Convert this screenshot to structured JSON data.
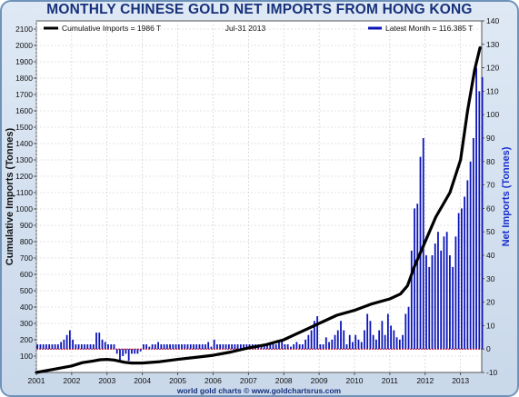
{
  "title": "MONTHLY CHINESE GOLD NET IMPORTS FROM HONG KONG",
  "footer": "world gold charts © www.goldchartsrus.com",
  "colors": {
    "title": "#16307a",
    "bars": "#0b14b8",
    "line": "#000000",
    "frame": "#6f93b8",
    "zero_line": "#b0002a",
    "left_axis_label": "#111111",
    "right_axis_label": "#1a2fd0"
  },
  "chart_data": {
    "type": "bar+line",
    "left_axis": {
      "label": "Cumulative Imports (Tonnes)",
      "min": 0,
      "max": 2150,
      "ticks": [
        100,
        200,
        300,
        400,
        500,
        600,
        700,
        800,
        900,
        1000,
        1100,
        1200,
        1300,
        1400,
        1500,
        1600,
        1700,
        1800,
        1900,
        2000,
        2100
      ]
    },
    "right_axis": {
      "label": "Net Imports (Tonnes)",
      "min": -10,
      "max": 140,
      "ticks": [
        -10,
        0,
        10,
        20,
        30,
        40,
        50,
        60,
        70,
        80,
        90,
        100,
        110,
        120,
        130,
        140
      ]
    },
    "x_axis": {
      "ticks": [
        "2001",
        "2002",
        "2003",
        "2004",
        "2005",
        "2006",
        "2007",
        "2008",
        "2009",
        "2010",
        "2011",
        "2012",
        "2013"
      ],
      "start": 2001.0,
      "end": 2013.6
    },
    "legend": {
      "left": "Cumulative Imports = 1986 T",
      "center": "Jul-31 2013",
      "right": "Latest Month = 116.385 T"
    },
    "series": [
      {
        "name": "Latest Month",
        "type": "bar",
        "axis": "right",
        "start": "2001-01",
        "monthly_values": [
          2,
          2,
          2,
          2,
          2,
          2,
          2,
          2,
          3,
          4,
          6,
          8,
          4,
          2,
          2,
          2,
          2,
          2,
          2,
          2,
          7,
          7,
          4,
          3,
          2,
          2,
          2,
          -2,
          -5,
          -3,
          -2,
          -5,
          -2,
          -2,
          -2,
          -1,
          2,
          2,
          1,
          2,
          2,
          3,
          2,
          2,
          2,
          2,
          2,
          2,
          2,
          2,
          2,
          2,
          2,
          2,
          2,
          2,
          2,
          2,
          3,
          1,
          4,
          2,
          2,
          2,
          2,
          2,
          2,
          2,
          2,
          2,
          2,
          2,
          2,
          2,
          2,
          2,
          2,
          2,
          2,
          2,
          2,
          2,
          3,
          4,
          2,
          2,
          1,
          2,
          3,
          2,
          2,
          4,
          6,
          8,
          12,
          14,
          2,
          2,
          5,
          3,
          4,
          6,
          8,
          12,
          8,
          2,
          6,
          3,
          6,
          4,
          3,
          8,
          15,
          12,
          6,
          4,
          8,
          12,
          6,
          15,
          10,
          8,
          5,
          4,
          6,
          15,
          18,
          42,
          60,
          62,
          82,
          90,
          40,
          35,
          40,
          45,
          50,
          42,
          48,
          50,
          40,
          35,
          48,
          58,
          60,
          65,
          72,
          80,
          90,
          120,
          110,
          116
        ]
      },
      {
        "name": "Cumulative Imports",
        "type": "line",
        "axis": "left",
        "points": [
          [
            2001.0,
            0
          ],
          [
            2001.5,
            20
          ],
          [
            2002.0,
            40
          ],
          [
            2002.3,
            60
          ],
          [
            2002.6,
            70
          ],
          [
            2002.8,
            78
          ],
          [
            2003.0,
            80
          ],
          [
            2003.2,
            76
          ],
          [
            2003.5,
            62
          ],
          [
            2003.7,
            58
          ],
          [
            2004.0,
            58
          ],
          [
            2004.5,
            66
          ],
          [
            2005.0,
            80
          ],
          [
            2005.5,
            92
          ],
          [
            2006.0,
            105
          ],
          [
            2006.5,
            125
          ],
          [
            2007.0,
            150
          ],
          [
            2007.5,
            170
          ],
          [
            2008.0,
            200
          ],
          [
            2008.3,
            230
          ],
          [
            2008.6,
            260
          ],
          [
            2009.0,
            300
          ],
          [
            2009.5,
            350
          ],
          [
            2010.0,
            380
          ],
          [
            2010.5,
            420
          ],
          [
            2011.0,
            450
          ],
          [
            2011.3,
            480
          ],
          [
            2011.5,
            530
          ],
          [
            2011.7,
            650
          ],
          [
            2012.0,
            800
          ],
          [
            2012.3,
            950
          ],
          [
            2012.7,
            1100
          ],
          [
            2013.0,
            1300
          ],
          [
            2013.2,
            1600
          ],
          [
            2013.4,
            1850
          ],
          [
            2013.55,
            1986
          ]
        ]
      }
    ]
  }
}
